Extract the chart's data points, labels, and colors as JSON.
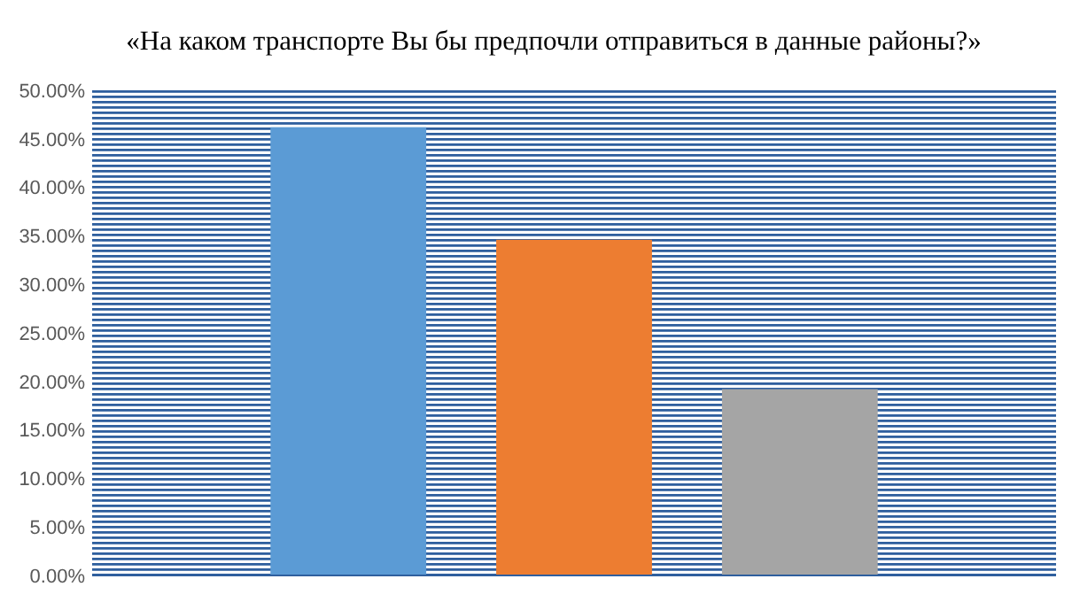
{
  "chart_data": {
    "type": "bar",
    "title": "«На каком транспорте Вы бы предпочли отправиться в данные районы?»",
    "categories": [
      null,
      null,
      null
    ],
    "values": [
      46.2,
      34.6,
      19.2
    ],
    "colors": [
      "#5b9bd5",
      "#ed7d31",
      "#a5a5a5"
    ],
    "ylim": [
      0,
      50
    ],
    "yticks": [
      {
        "value": 0,
        "label": "0.00%"
      },
      {
        "value": 5,
        "label": "5.00%"
      },
      {
        "value": 10,
        "label": "10.00%"
      },
      {
        "value": 15,
        "label": "15.00%"
      },
      {
        "value": 20,
        "label": "20.00%"
      },
      {
        "value": 25,
        "label": "25.00%"
      },
      {
        "value": 30,
        "label": "30.00%"
      },
      {
        "value": 35,
        "label": "35.00%"
      },
      {
        "value": 40,
        "label": "40.00%"
      },
      {
        "value": 45,
        "label": "45.00%"
      },
      {
        "value": 50,
        "label": "50.00%"
      }
    ]
  }
}
